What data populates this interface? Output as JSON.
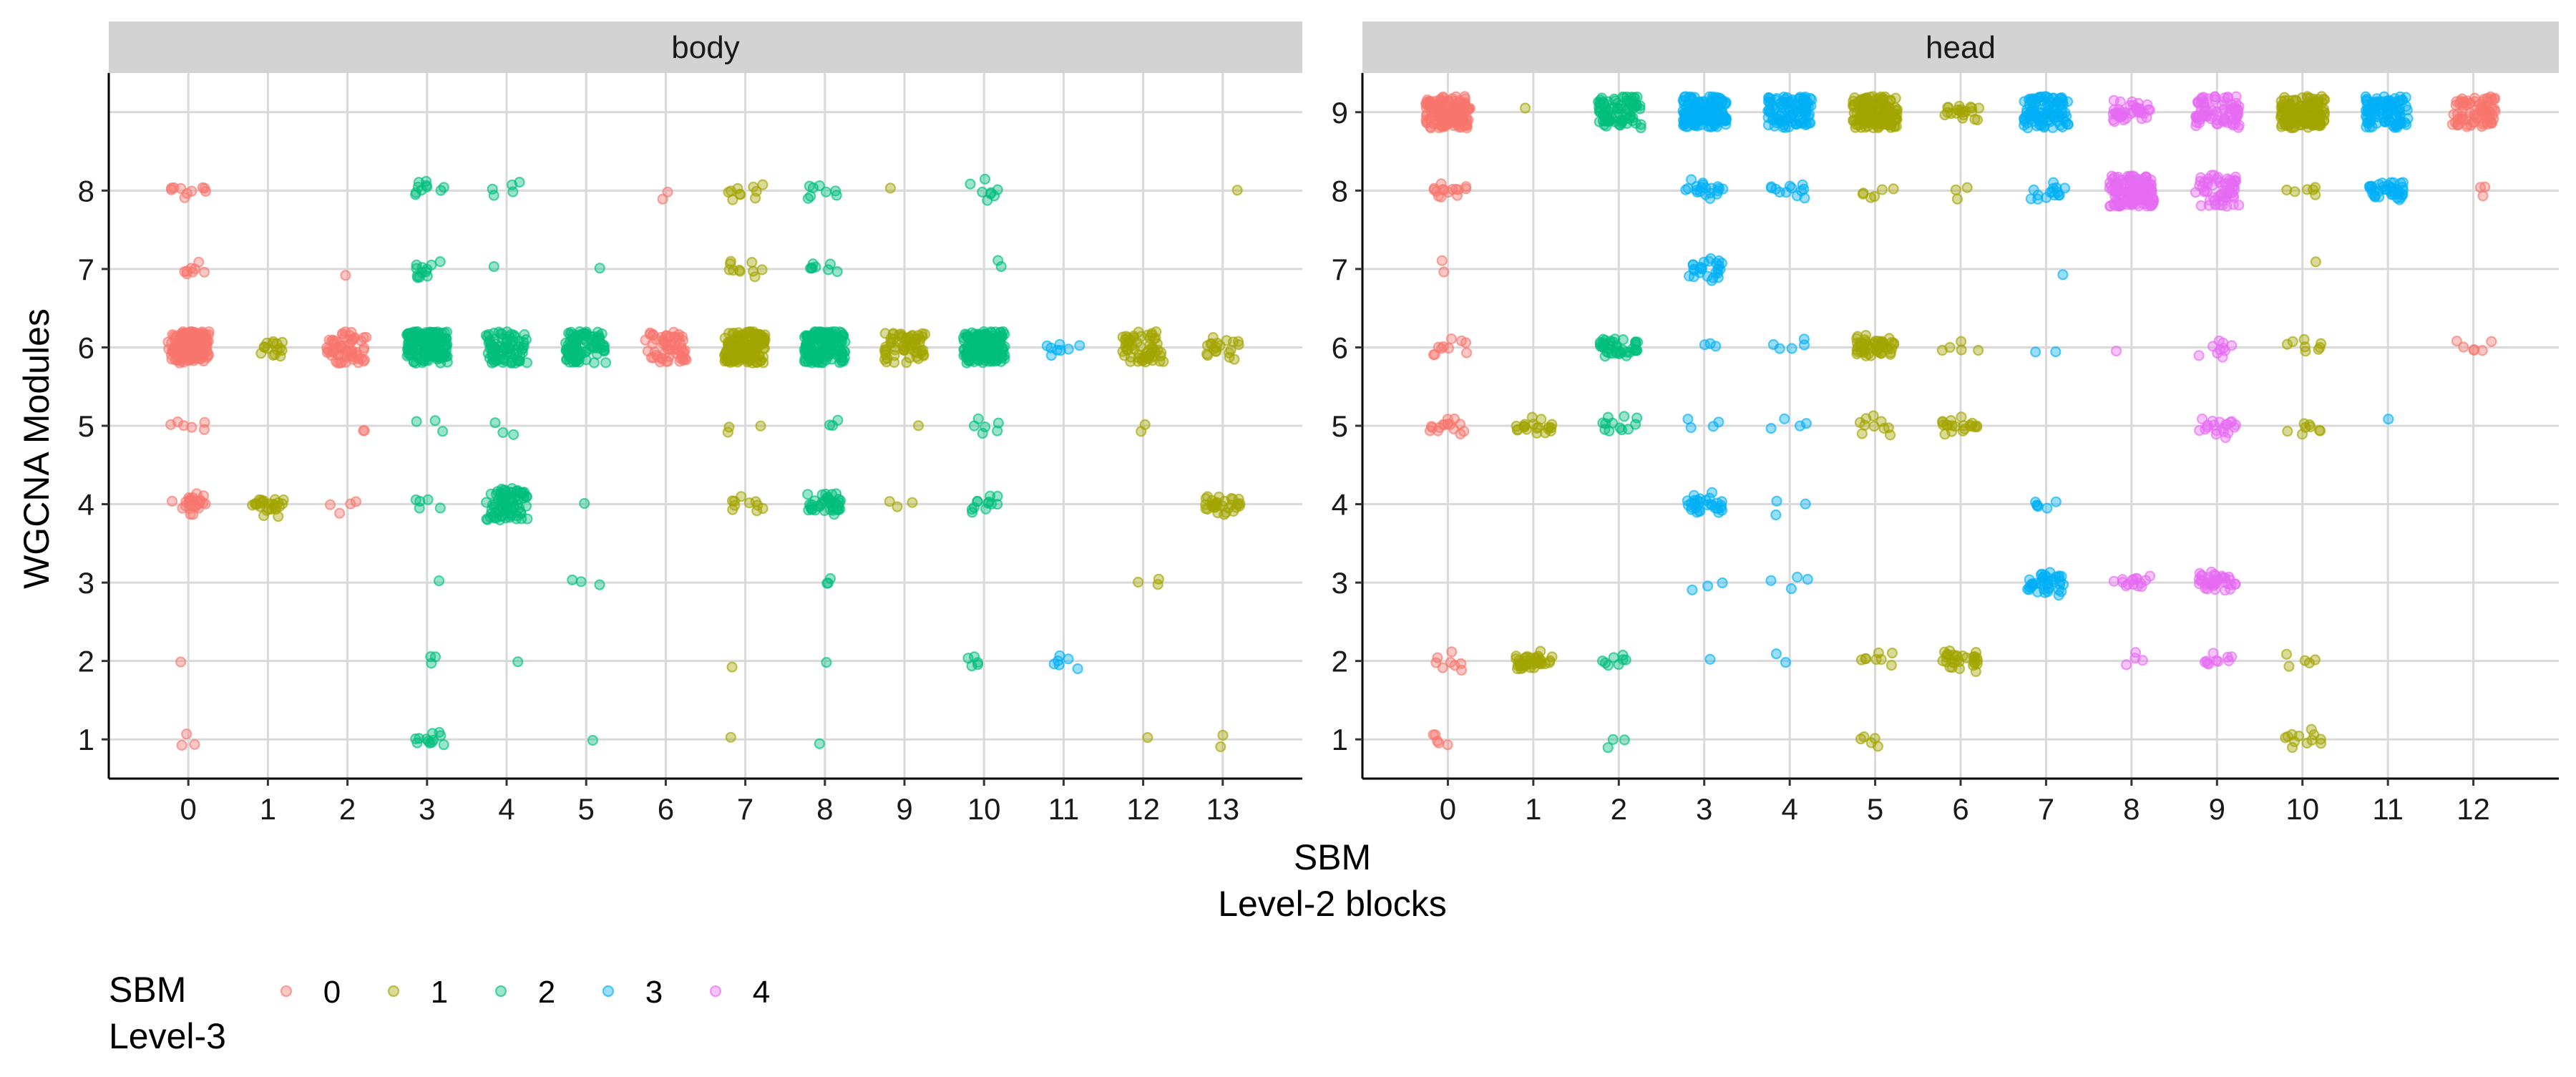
{
  "chart_data": {
    "type": "scatter",
    "jitter": true,
    "point_alpha": 0.4,
    "xlabel_lines": [
      "SBM",
      "Level-2 blocks"
    ],
    "ylabel": "WGCNA Modules",
    "ylim": [
      0.5,
      9.5
    ],
    "y_ticks": [
      1,
      2,
      3,
      4,
      5,
      6,
      7,
      8,
      9
    ],
    "grid": true,
    "legend": {
      "position": "bottom-left",
      "title_lines": [
        "SBM",
        "Level-3"
      ],
      "entries": [
        {
          "key": 0,
          "label": "0",
          "color": "#F8766D"
        },
        {
          "key": 1,
          "label": "1",
          "color": "#A3A500"
        },
        {
          "key": 2,
          "label": "2",
          "color": "#00BF7D"
        },
        {
          "key": 3,
          "label": "3",
          "color": "#00B0F6"
        },
        {
          "key": 4,
          "label": "4",
          "color": "#E76BF3"
        }
      ]
    },
    "panels": [
      {
        "strip": "body",
        "x_categories": [
          "0",
          "1",
          "2",
          "3",
          "4",
          "5",
          "6",
          "7",
          "8",
          "9",
          "10",
          "11",
          "12",
          "13"
        ],
        "y_ticks": [
          1,
          2,
          3,
          4,
          5,
          6,
          7,
          8
        ],
        "clusters": [
          {
            "x": 0,
            "y": 8,
            "level3": 0,
            "n": 10
          },
          {
            "x": 0,
            "y": 7,
            "level3": 0,
            "n": 8
          },
          {
            "x": 0,
            "y": 6,
            "level3": 0,
            "n": 150
          },
          {
            "x": 0,
            "y": 5,
            "level3": 0,
            "n": 6
          },
          {
            "x": 0,
            "y": 4,
            "level3": 0,
            "n": 25
          },
          {
            "x": 0,
            "y": 2,
            "level3": 0,
            "n": 1
          },
          {
            "x": 0,
            "y": 1,
            "level3": 0,
            "n": 3
          },
          {
            "x": 1,
            "y": 6,
            "level3": 1,
            "n": 15
          },
          {
            "x": 1,
            "y": 4,
            "level3": 1,
            "n": 25
          },
          {
            "x": 2,
            "y": 7,
            "level3": 0,
            "n": 1
          },
          {
            "x": 2,
            "y": 6,
            "level3": 0,
            "n": 60
          },
          {
            "x": 2,
            "y": 5,
            "level3": 0,
            "n": 2
          },
          {
            "x": 2,
            "y": 4,
            "level3": 0,
            "n": 4
          },
          {
            "x": 3,
            "y": 8,
            "level3": 2,
            "n": 10
          },
          {
            "x": 3,
            "y": 7,
            "level3": 2,
            "n": 12
          },
          {
            "x": 3,
            "y": 6,
            "level3": 2,
            "n": 150
          },
          {
            "x": 3,
            "y": 5,
            "level3": 2,
            "n": 3
          },
          {
            "x": 3,
            "y": 4,
            "level3": 2,
            "n": 5
          },
          {
            "x": 3,
            "y": 3,
            "level3": 2,
            "n": 1
          },
          {
            "x": 3,
            "y": 2,
            "level3": 2,
            "n": 3
          },
          {
            "x": 3,
            "y": 1,
            "level3": 2,
            "n": 12
          },
          {
            "x": 4,
            "y": 8,
            "level3": 2,
            "n": 5
          },
          {
            "x": 4,
            "y": 7,
            "level3": 2,
            "n": 1
          },
          {
            "x": 4,
            "y": 6,
            "level3": 2,
            "n": 80
          },
          {
            "x": 4,
            "y": 5,
            "level3": 2,
            "n": 3
          },
          {
            "x": 4,
            "y": 4,
            "level3": 2,
            "n": 80
          },
          {
            "x": 4,
            "y": 2,
            "level3": 2,
            "n": 1
          },
          {
            "x": 5,
            "y": 7,
            "level3": 2,
            "n": 1
          },
          {
            "x": 5,
            "y": 6,
            "level3": 2,
            "n": 100
          },
          {
            "x": 5,
            "y": 4,
            "level3": 2,
            "n": 1
          },
          {
            "x": 5,
            "y": 3,
            "level3": 2,
            "n": 3
          },
          {
            "x": 5,
            "y": 1,
            "level3": 2,
            "n": 1
          },
          {
            "x": 6,
            "y": 8,
            "level3": 0,
            "n": 2
          },
          {
            "x": 6,
            "y": 6,
            "level3": 0,
            "n": 60
          },
          {
            "x": 7,
            "y": 8,
            "level3": 1,
            "n": 10
          },
          {
            "x": 7,
            "y": 7,
            "level3": 1,
            "n": 10
          },
          {
            "x": 7,
            "y": 6,
            "level3": 1,
            "n": 150
          },
          {
            "x": 7,
            "y": 5,
            "level3": 1,
            "n": 3
          },
          {
            "x": 7,
            "y": 4,
            "level3": 1,
            "n": 10
          },
          {
            "x": 7,
            "y": 2,
            "level3": 1,
            "n": 1
          },
          {
            "x": 7,
            "y": 1,
            "level3": 1,
            "n": 1
          },
          {
            "x": 8,
            "y": 8,
            "level3": 2,
            "n": 8
          },
          {
            "x": 8,
            "y": 7,
            "level3": 2,
            "n": 8
          },
          {
            "x": 8,
            "y": 6,
            "level3": 2,
            "n": 150
          },
          {
            "x": 8,
            "y": 5,
            "level3": 2,
            "n": 3
          },
          {
            "x": 8,
            "y": 4,
            "level3": 2,
            "n": 40
          },
          {
            "x": 8,
            "y": 3,
            "level3": 2,
            "n": 3
          },
          {
            "x": 8,
            "y": 2,
            "level3": 2,
            "n": 1
          },
          {
            "x": 8,
            "y": 1,
            "level3": 2,
            "n": 1
          },
          {
            "x": 9,
            "y": 8,
            "level3": 1,
            "n": 1
          },
          {
            "x": 9,
            "y": 6,
            "level3": 1,
            "n": 60
          },
          {
            "x": 9,
            "y": 5,
            "level3": 1,
            "n": 1
          },
          {
            "x": 9,
            "y": 4,
            "level3": 1,
            "n": 3
          },
          {
            "x": 10,
            "y": 8,
            "level3": 2,
            "n": 8
          },
          {
            "x": 10,
            "y": 7,
            "level3": 2,
            "n": 2
          },
          {
            "x": 10,
            "y": 6,
            "level3": 2,
            "n": 150
          },
          {
            "x": 10,
            "y": 5,
            "level3": 2,
            "n": 6
          },
          {
            "x": 10,
            "y": 4,
            "level3": 2,
            "n": 12
          },
          {
            "x": 10,
            "y": 2,
            "level3": 2,
            "n": 5
          },
          {
            "x": 11,
            "y": 6,
            "level3": 3,
            "n": 8
          },
          {
            "x": 11,
            "y": 2,
            "level3": 3,
            "n": 6
          },
          {
            "x": 12,
            "y": 6,
            "level3": 1,
            "n": 60
          },
          {
            "x": 12,
            "y": 5,
            "level3": 1,
            "n": 2
          },
          {
            "x": 12,
            "y": 3,
            "level3": 1,
            "n": 3
          },
          {
            "x": 12,
            "y": 1,
            "level3": 1,
            "n": 1
          },
          {
            "x": 13,
            "y": 8,
            "level3": 1,
            "n": 1
          },
          {
            "x": 13,
            "y": 6,
            "level3": 1,
            "n": 20
          },
          {
            "x": 13,
            "y": 4,
            "level3": 1,
            "n": 30
          },
          {
            "x": 13,
            "y": 1,
            "level3": 1,
            "n": 2
          }
        ]
      },
      {
        "strip": "head",
        "x_categories": [
          "0",
          "1",
          "2",
          "3",
          "4",
          "5",
          "6",
          "7",
          "8",
          "9",
          "10",
          "11",
          "12"
        ],
        "y_ticks": [
          1,
          2,
          3,
          4,
          5,
          6,
          7,
          8,
          9
        ],
        "clusters": [
          {
            "x": 0,
            "y": 9,
            "level3": 0,
            "n": 150
          },
          {
            "x": 0,
            "y": 8,
            "level3": 0,
            "n": 15
          },
          {
            "x": 0,
            "y": 7,
            "level3": 0,
            "n": 2
          },
          {
            "x": 0,
            "y": 6,
            "level3": 0,
            "n": 10
          },
          {
            "x": 0,
            "y": 5,
            "level3": 0,
            "n": 15
          },
          {
            "x": 0,
            "y": 2,
            "level3": 0,
            "n": 8
          },
          {
            "x": 0,
            "y": 1,
            "level3": 0,
            "n": 5
          },
          {
            "x": 1,
            "y": 9,
            "level3": 1,
            "n": 1
          },
          {
            "x": 1,
            "y": 5,
            "level3": 1,
            "n": 20
          },
          {
            "x": 1,
            "y": 2,
            "level3": 1,
            "n": 40
          },
          {
            "x": 2,
            "y": 9,
            "level3": 2,
            "n": 80
          },
          {
            "x": 2,
            "y": 6,
            "level3": 2,
            "n": 40
          },
          {
            "x": 2,
            "y": 5,
            "level3": 2,
            "n": 12
          },
          {
            "x": 2,
            "y": 2,
            "level3": 2,
            "n": 8
          },
          {
            "x": 2,
            "y": 1,
            "level3": 2,
            "n": 3
          },
          {
            "x": 3,
            "y": 9,
            "level3": 3,
            "n": 150
          },
          {
            "x": 3,
            "y": 8,
            "level3": 3,
            "n": 20
          },
          {
            "x": 3,
            "y": 7,
            "level3": 3,
            "n": 25
          },
          {
            "x": 3,
            "y": 6,
            "level3": 3,
            "n": 3
          },
          {
            "x": 3,
            "y": 5,
            "level3": 3,
            "n": 4
          },
          {
            "x": 3,
            "y": 4,
            "level3": 3,
            "n": 30
          },
          {
            "x": 3,
            "y": 3,
            "level3": 3,
            "n": 3
          },
          {
            "x": 3,
            "y": 2,
            "level3": 3,
            "n": 1
          },
          {
            "x": 4,
            "y": 9,
            "level3": 3,
            "n": 100
          },
          {
            "x": 4,
            "y": 8,
            "level3": 3,
            "n": 12
          },
          {
            "x": 4,
            "y": 6,
            "level3": 3,
            "n": 5
          },
          {
            "x": 4,
            "y": 5,
            "level3": 3,
            "n": 4
          },
          {
            "x": 4,
            "y": 4,
            "level3": 3,
            "n": 3
          },
          {
            "x": 4,
            "y": 3,
            "level3": 3,
            "n": 4
          },
          {
            "x": 4,
            "y": 2,
            "level3": 3,
            "n": 2
          },
          {
            "x": 5,
            "y": 9,
            "level3": 1,
            "n": 150
          },
          {
            "x": 5,
            "y": 8,
            "level3": 1,
            "n": 6
          },
          {
            "x": 5,
            "y": 6,
            "level3": 1,
            "n": 50
          },
          {
            "x": 5,
            "y": 5,
            "level3": 1,
            "n": 10
          },
          {
            "x": 5,
            "y": 2,
            "level3": 1,
            "n": 8
          },
          {
            "x": 5,
            "y": 1,
            "level3": 1,
            "n": 5
          },
          {
            "x": 6,
            "y": 9,
            "level3": 1,
            "n": 20
          },
          {
            "x": 6,
            "y": 8,
            "level3": 1,
            "n": 3
          },
          {
            "x": 6,
            "y": 6,
            "level3": 1,
            "n": 5
          },
          {
            "x": 6,
            "y": 5,
            "level3": 1,
            "n": 20
          },
          {
            "x": 6,
            "y": 2,
            "level3": 1,
            "n": 30
          },
          {
            "x": 7,
            "y": 9,
            "level3": 3,
            "n": 100
          },
          {
            "x": 7,
            "y": 8,
            "level3": 3,
            "n": 15
          },
          {
            "x": 7,
            "y": 7,
            "level3": 3,
            "n": 1
          },
          {
            "x": 7,
            "y": 6,
            "level3": 3,
            "n": 2
          },
          {
            "x": 7,
            "y": 4,
            "level3": 3,
            "n": 6
          },
          {
            "x": 7,
            "y": 3,
            "level3": 3,
            "n": 40
          },
          {
            "x": 8,
            "y": 9,
            "level3": 4,
            "n": 40
          },
          {
            "x": 8,
            "y": 8,
            "level3": 4,
            "n": 150
          },
          {
            "x": 8,
            "y": 6,
            "level3": 4,
            "n": 1
          },
          {
            "x": 8,
            "y": 3,
            "level3": 4,
            "n": 15
          },
          {
            "x": 8,
            "y": 2,
            "level3": 4,
            "n": 4
          },
          {
            "x": 9,
            "y": 9,
            "level3": 4,
            "n": 80
          },
          {
            "x": 9,
            "y": 8,
            "level3": 4,
            "n": 60
          },
          {
            "x": 9,
            "y": 6,
            "level3": 4,
            "n": 10
          },
          {
            "x": 9,
            "y": 5,
            "level3": 4,
            "n": 20
          },
          {
            "x": 9,
            "y": 3,
            "level3": 4,
            "n": 40
          },
          {
            "x": 9,
            "y": 2,
            "level3": 4,
            "n": 10
          },
          {
            "x": 10,
            "y": 9,
            "level3": 1,
            "n": 150
          },
          {
            "x": 10,
            "y": 8,
            "level3": 1,
            "n": 6
          },
          {
            "x": 10,
            "y": 7,
            "level3": 1,
            "n": 1
          },
          {
            "x": 10,
            "y": 6,
            "level3": 1,
            "n": 8
          },
          {
            "x": 10,
            "y": 5,
            "level3": 1,
            "n": 8
          },
          {
            "x": 10,
            "y": 2,
            "level3": 1,
            "n": 5
          },
          {
            "x": 10,
            "y": 1,
            "level3": 1,
            "n": 12
          },
          {
            "x": 11,
            "y": 9,
            "level3": 3,
            "n": 100
          },
          {
            "x": 11,
            "y": 8,
            "level3": 3,
            "n": 40
          },
          {
            "x": 11,
            "y": 5,
            "level3": 3,
            "n": 1
          },
          {
            "x": 12,
            "y": 9,
            "level3": 0,
            "n": 80
          },
          {
            "x": 12,
            "y": 8,
            "level3": 0,
            "n": 3
          },
          {
            "x": 12,
            "y": 6,
            "level3": 0,
            "n": 6
          }
        ]
      }
    ]
  }
}
